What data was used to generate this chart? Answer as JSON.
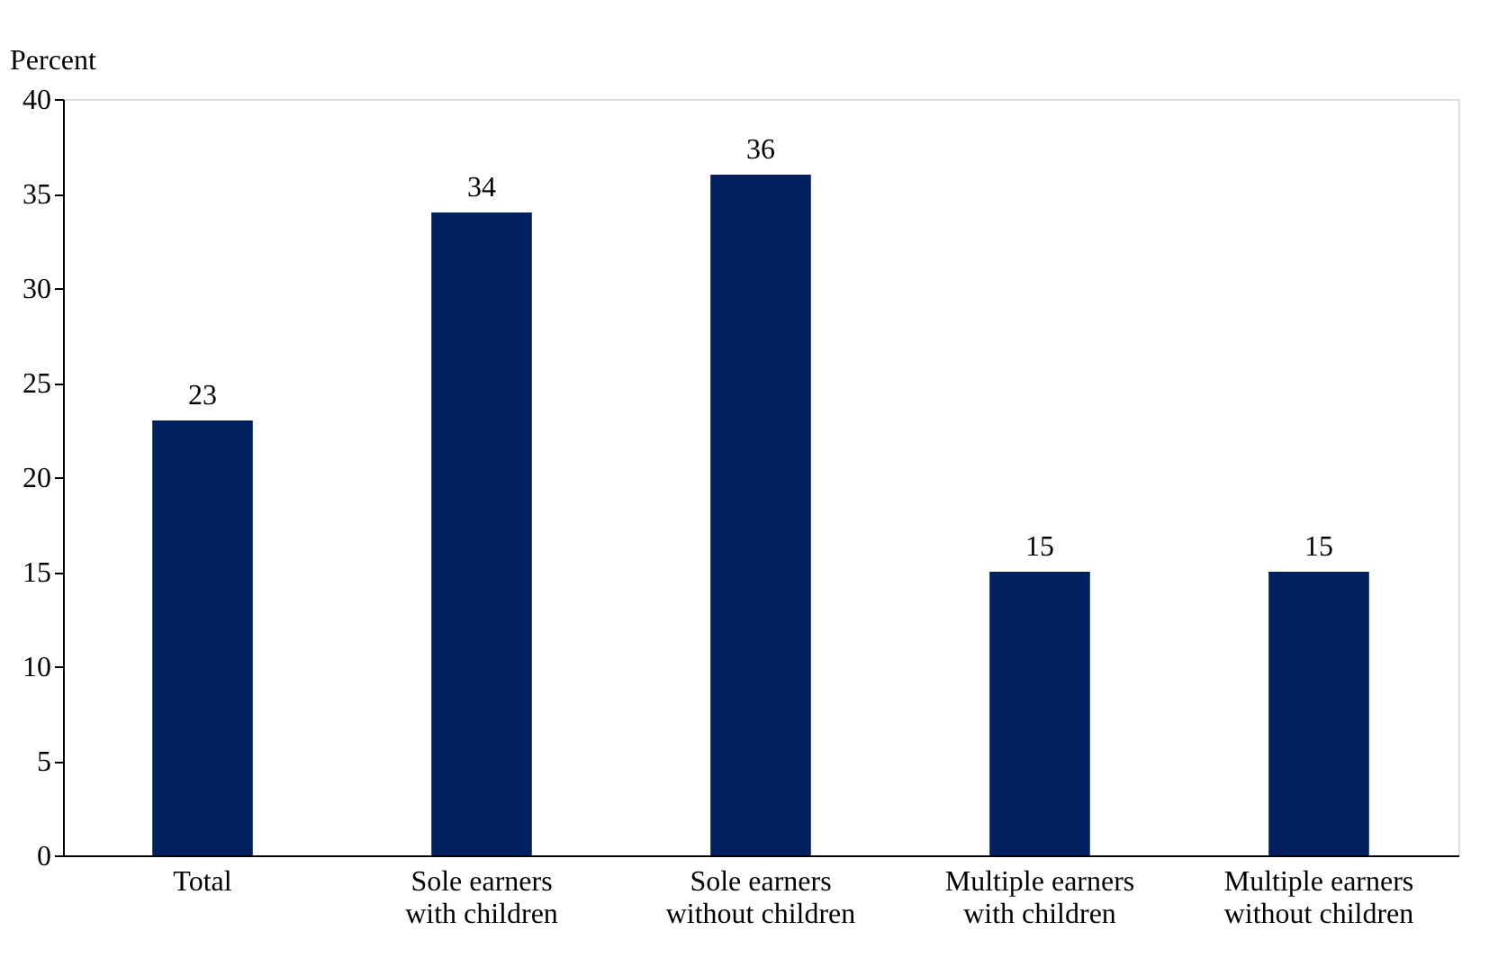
{
  "chart_data": {
    "type": "bar",
    "ylabel": "Percent",
    "categories": [
      "Total",
      "Sole earners with children",
      "Sole earners without children",
      "Multiple earners with children",
      "Multiple earners without children"
    ],
    "values": [
      23,
      34,
      36,
      15,
      15
    ],
    "color": "#002060",
    "ylim": [
      0,
      40
    ],
    "yticks": [
      0,
      5,
      10,
      15,
      20,
      25,
      30,
      35,
      40
    ],
    "data_labels": true,
    "grid": false
  }
}
